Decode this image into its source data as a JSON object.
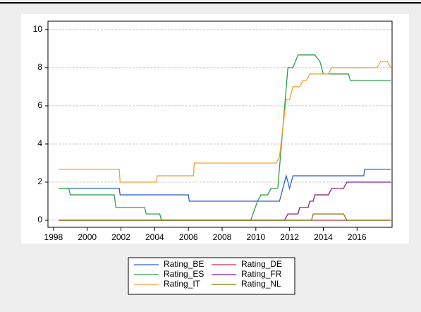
{
  "chart_data": {
    "type": "line",
    "xlim": [
      1997.67,
      2018.08
    ],
    "ylim": [
      -0.37,
      10.44
    ],
    "xticks": [
      1998,
      2000,
      2002,
      2004,
      2006,
      2008,
      2010,
      2012,
      2014,
      2016
    ],
    "yticks": [
      0,
      2,
      4,
      6,
      8,
      10
    ],
    "grid": true,
    "legend": "bottom",
    "series": [
      {
        "name": "Rating_BE",
        "color": "#2a62c9",
        "x": [
          1998.3,
          2001.9,
          2001.95,
          2006.0,
          2006.05,
          2011.4,
          2011.8,
          2012.0,
          2012.2,
          2016.4,
          2016.45,
          2018.0
        ],
        "values": [
          1.67,
          1.67,
          1.33,
          1.33,
          1.0,
          1.0,
          2.33,
          1.67,
          2.33,
          2.33,
          2.67,
          2.67
        ]
      },
      {
        "name": "Rating_DE",
        "color": "#c8323c",
        "x": [
          1998.3,
          2018.0
        ],
        "values": [
          0,
          0
        ]
      },
      {
        "name": "Rating_ES",
        "color": "#2f9e4a",
        "x": [
          1998.3,
          1998.9,
          1999.0,
          2001.6,
          2001.7,
          2003.4,
          2003.5,
          2004.3,
          2004.4,
          2009.7,
          2010.1,
          2010.3,
          2010.7,
          2010.9,
          2011.3,
          2011.9,
          2012.2,
          2012.5,
          2013.5,
          2013.8,
          2014.0,
          2015.5,
          2015.6,
          2018.0
        ],
        "values": [
          1.67,
          1.67,
          1.33,
          1.33,
          0.67,
          0.67,
          0.33,
          0.33,
          0,
          0,
          1.0,
          1.33,
          1.33,
          1.67,
          1.67,
          8.0,
          8.0,
          8.67,
          8.67,
          8.33,
          7.67,
          7.67,
          7.33,
          7.33
        ]
      },
      {
        "name": "Rating_FR",
        "color": "#8b1c8b",
        "x": [
          1998.3,
          2011.7,
          2011.9,
          2012.5,
          2012.6,
          2013.1,
          2013.2,
          2013.4,
          2013.5,
          2014.3,
          2014.5,
          2015.2,
          2015.4,
          2018.0
        ],
        "values": [
          0,
          0,
          0.33,
          0.33,
          0.67,
          0.67,
          1.0,
          1.0,
          1.33,
          1.33,
          1.67,
          1.67,
          2.0,
          2.0
        ]
      },
      {
        "name": "Rating_IT",
        "color": "#f0a030",
        "x": [
          1998.3,
          2001.9,
          2001.95,
          2004.1,
          2004.15,
          2006.3,
          2006.35,
          2011.2,
          2011.4,
          2011.8,
          2012.0,
          2012.2,
          2012.6,
          2012.8,
          2013.0,
          2013.2,
          2014.3,
          2014.5,
          2017.2,
          2017.4,
          2017.8,
          2018.0
        ],
        "values": [
          2.67,
          2.67,
          2.0,
          2.0,
          2.33,
          2.33,
          3.0,
          3.0,
          3.33,
          6.33,
          6.33,
          7.0,
          7.0,
          7.33,
          7.33,
          7.67,
          7.67,
          8.0,
          8.0,
          8.33,
          8.33,
          8.0
        ]
      },
      {
        "name": "Rating_NL",
        "color": "#7a7a00",
        "x": [
          1998.3,
          2013.3,
          2013.4,
          2015.2,
          2015.4,
          2018.0
        ],
        "values": [
          0,
          0,
          0.33,
          0.33,
          0,
          0
        ]
      }
    ]
  }
}
